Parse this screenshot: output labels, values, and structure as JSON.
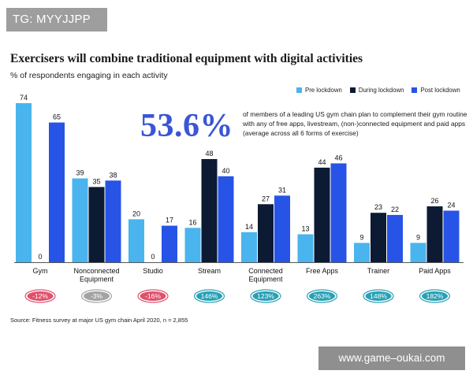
{
  "watermark_top": "TG: MYYJJPP",
  "watermark_bottom": "www.game–oukai.com",
  "headline": {
    "stat": "53.6%",
    "description": "of members of a leading US gym chain plan to complement their gym routine with any of free apps, livestream, (non-)connected equipment and paid apps (average across all 6 forms of exercise)"
  },
  "source": "Source: Fitness survey at major US gym chain April 2020, n = 2,855",
  "colors": {
    "pre": "#4ab4ee",
    "during": "#0c1a33",
    "post": "#2754e6",
    "negative_pill": "#e0506b",
    "neutral_pill": "#a3a3a3",
    "positive_pill": "#27a0b4",
    "title": "#1a1a1a",
    "stat": "#3b55d6"
  },
  "chart_data": {
    "type": "bar",
    "title": "Exercisers will combine traditional equipment with digital activities",
    "subtitle": "% of respondents engaging in each activity",
    "categories": [
      "Gym",
      "Nonconnected\nEquipment",
      "Studio",
      "Stream",
      "Connected\nEquipment",
      "Free Apps",
      "Trainer",
      "Paid Apps"
    ],
    "series": [
      {
        "name": "Pre lockdown",
        "values": [
          74,
          39,
          20,
          16,
          14,
          13,
          9,
          9
        ]
      },
      {
        "name": "During lockdown",
        "values": [
          0,
          35,
          0,
          48,
          27,
          44,
          23,
          26
        ]
      },
      {
        "name": "Post lockdown",
        "values": [
          65,
          38,
          17,
          40,
          31,
          46,
          22,
          24
        ]
      }
    ],
    "changes": [
      "-12%",
      "-3%",
      "-16%",
      "146%",
      "123%",
      "263%",
      "148%",
      "182%"
    ],
    "change_kinds": [
      "negative",
      "neutral",
      "negative",
      "positive",
      "positive",
      "positive",
      "positive",
      "positive"
    ],
    "ylim": [
      0,
      74
    ],
    "legend_position": "top-right",
    "grid": false
  }
}
